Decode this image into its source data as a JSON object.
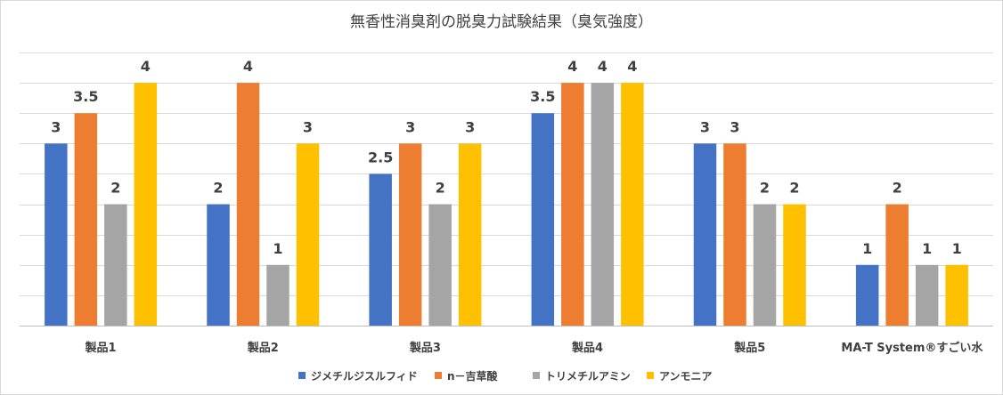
{
  "chart_data": {
    "type": "bar",
    "title": "無香性消臭剤の脱臭力試験結果（臭気強度）",
    "categories": [
      "製品1",
      "製品2",
      "製品3",
      "製品4",
      "製品5",
      "MA-T System®すごい水"
    ],
    "series": [
      {
        "name": "ジメチルジスルフィド",
        "color": "#4472C4",
        "values": [
          3,
          2,
          2.5,
          3.5,
          3,
          1
        ]
      },
      {
        "name": "n－吉草酸",
        "color": "#ED7D31",
        "values": [
          3.5,
          4,
          3,
          4,
          3,
          2
        ]
      },
      {
        "name": "トリメチルアミン",
        "color": "#A5A5A5",
        "values": [
          2,
          1,
          2,
          4,
          2,
          1
        ]
      },
      {
        "name": "アンモニア",
        "color": "#FFC000",
        "values": [
          4,
          3,
          3,
          4,
          2,
          1
        ]
      }
    ],
    "ylim": [
      0,
      4.5
    ],
    "grid": true,
    "legend_position": "bottom",
    "xlabel": "",
    "ylabel": ""
  }
}
